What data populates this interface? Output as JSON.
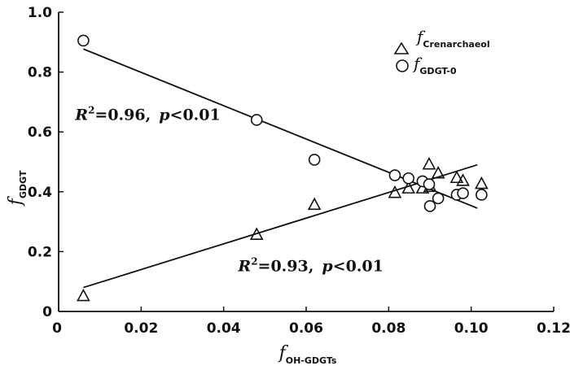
{
  "chart_data": {
    "type": "scatter",
    "xlim": [
      0,
      0.12
    ],
    "ylim": [
      0,
      1.0
    ],
    "x_ticks": [
      "0",
      "0.02",
      "0.04",
      "0.06",
      "0.08",
      "0.10",
      "0.12"
    ],
    "x_tick_values": [
      0,
      0.02,
      0.04,
      0.06,
      0.08,
      0.1,
      0.12
    ],
    "y_ticks": [
      "0",
      "0.2",
      "0.4",
      "0.6",
      "0.8",
      "1.0"
    ],
    "y_tick_values": [
      0,
      0.2,
      0.4,
      0.6,
      0.8,
      1.0
    ],
    "xlabel": {
      "main": "f",
      "sub": "OH-GDGTs"
    },
    "ylabel": {
      "main": "f",
      "sub": "GDGT"
    },
    "grid": false,
    "legend_position": "top-right",
    "series": [
      {
        "name_main": "f",
        "name_sub": "Crenarchaeol",
        "marker": "triangle",
        "points": [
          [
            0.006,
            0.05
          ],
          [
            0.048,
            0.255
          ],
          [
            0.062,
            0.355
          ],
          [
            0.0815,
            0.395
          ],
          [
            0.0848,
            0.41
          ],
          [
            0.0882,
            0.41
          ],
          [
            0.0898,
            0.49
          ],
          [
            0.09,
            0.415
          ],
          [
            0.092,
            0.46
          ],
          [
            0.0965,
            0.445
          ],
          [
            0.098,
            0.435
          ],
          [
            0.1025,
            0.425
          ]
        ],
        "fit": {
          "x": [
            0.006,
            0.1015
          ],
          "y": [
            0.08,
            0.49
          ]
        }
      },
      {
        "name_main": "f",
        "name_sub": "GDGT-0",
        "marker": "circle",
        "points": [
          [
            0.006,
            0.905
          ],
          [
            0.048,
            0.64
          ],
          [
            0.062,
            0.507
          ],
          [
            0.0815,
            0.455
          ],
          [
            0.0848,
            0.445
          ],
          [
            0.0882,
            0.435
          ],
          [
            0.0898,
            0.425
          ],
          [
            0.09,
            0.352
          ],
          [
            0.092,
            0.378
          ],
          [
            0.0965,
            0.39
          ],
          [
            0.098,
            0.395
          ],
          [
            0.1025,
            0.39
          ]
        ],
        "fit": {
          "x": [
            0.006,
            0.1015
          ],
          "y": [
            0.877,
            0.345
          ]
        }
      }
    ],
    "annotations": [
      {
        "for": "GDGT-0",
        "r_symbol": "R",
        "r_sup": "2",
        "r_value": "=0.96,",
        "p_symbol": "p",
        "p_value": "<0.01",
        "x": 0.004,
        "y": 0.64
      },
      {
        "for": "Crenarchaeol",
        "r_symbol": "R",
        "r_sup": "2",
        "r_value": "=0.93,",
        "p_symbol": "p",
        "p_value": "<0.01",
        "x": 0.0435,
        "y": 0.135
      }
    ]
  }
}
